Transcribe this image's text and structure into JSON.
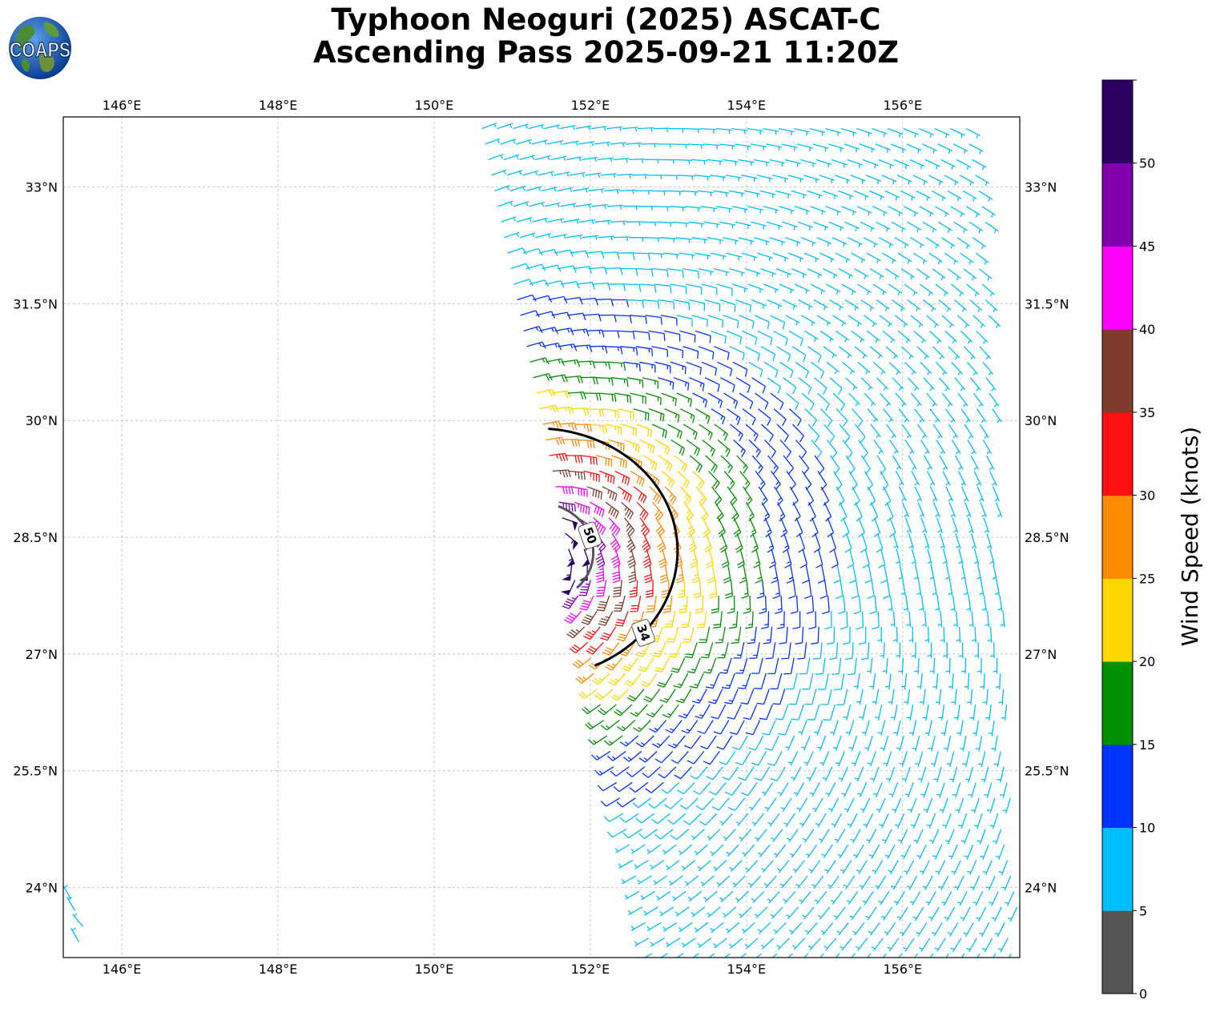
{
  "title": {
    "line1": "Typhoon Neoguri (2025) ASCAT-C",
    "line2": "Ascending Pass 2025-09-21 11:20Z"
  },
  "logo": {
    "text": "COAPS"
  },
  "map": {
    "lon_range": [
      145.25,
      157.5
    ],
    "lat_range": [
      23.1,
      33.9
    ],
    "lon_ticks": [
      "146°E",
      "148°E",
      "150°E",
      "152°E",
      "154°E",
      "156°E"
    ],
    "lon_tick_values": [
      146,
      148,
      150,
      152,
      154,
      156
    ],
    "lat_ticks": [
      "24°N",
      "25.5°N",
      "27°N",
      "28.5°N",
      "30°N",
      "31.5°N",
      "33°N"
    ],
    "lat_tick_values": [
      24,
      25.5,
      27,
      28.5,
      30,
      31.5,
      33
    ],
    "grid": true
  },
  "contours": [
    {
      "label": "34",
      "color": "#000000"
    },
    {
      "label": "50",
      "color": "#555555"
    }
  ],
  "colorbar": {
    "label": "Wind Speed (knots)",
    "ticks": [
      "0",
      "5",
      "10",
      "15",
      "20",
      "25",
      "30",
      "35",
      "40",
      "45",
      "50"
    ],
    "bins": [
      {
        "min": 0,
        "max": 5,
        "color": "#555555"
      },
      {
        "min": 5,
        "max": 10,
        "color": "#00bfff"
      },
      {
        "min": 10,
        "max": 15,
        "color": "#0033ff"
      },
      {
        "min": 15,
        "max": 20,
        "color": "#009100"
      },
      {
        "min": 20,
        "max": 25,
        "color": "#ffd700"
      },
      {
        "min": 25,
        "max": 30,
        "color": "#ff8c00"
      },
      {
        "min": 30,
        "max": 35,
        "color": "#ff1010"
      },
      {
        "min": 35,
        "max": 40,
        "color": "#7f3b2b"
      },
      {
        "min": 40,
        "max": 45,
        "color": "#ff00ff"
      },
      {
        "min": 45,
        "max": 50,
        "color": "#8000b0"
      },
      {
        "min": 50,
        "max": 55,
        "color": "#2a0060"
      }
    ]
  },
  "chart_data": {
    "type": "scatter",
    "description_of_marks": "wind barbs",
    "storm_center": {
      "lon": 151.3,
      "lat": 28.3
    },
    "radius_34kt_deg": 1.6,
    "radius_50kt_deg": 0.65,
    "swath": [
      {
        "lon": 150.6,
        "lat": 33.8
      },
      {
        "lon": 157.0,
        "lat": 33.8
      },
      {
        "lon": 157.5,
        "lat": 23.1
      },
      {
        "lon": 152.8,
        "lat": 23.1
      }
    ],
    "isolated_barbs": [
      {
        "lon": 145.35,
        "lat": 23.85,
        "speed": 6,
        "dir": 330
      },
      {
        "lon": 145.4,
        "lat": 23.7,
        "speed": 7,
        "dir": 330
      },
      {
        "lon": 145.5,
        "lat": 23.5,
        "speed": 7,
        "dir": 320
      },
      {
        "lon": 145.45,
        "lat": 23.3,
        "speed": 6,
        "dir": 330
      }
    ]
  }
}
